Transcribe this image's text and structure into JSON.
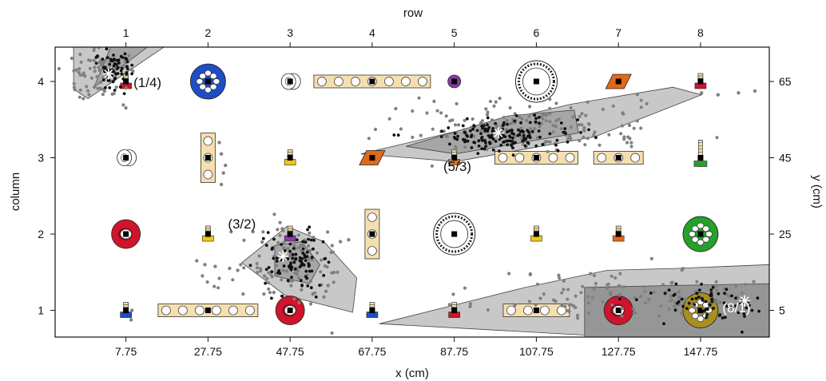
{
  "chart_data": {
    "type": "scatter",
    "title": "",
    "top_axis": {
      "label": "row",
      "ticks": [
        "1",
        "2",
        "3",
        "4",
        "5",
        "6",
        "7",
        "8"
      ]
    },
    "left_axis": {
      "label": "column",
      "ticks": [
        "1",
        "2",
        "3",
        "4"
      ]
    },
    "bottom_axis": {
      "label": "x (cm)",
      "ticks": [
        "7.75",
        "27.75",
        "47.75",
        "67.75",
        "87.75",
        "107.75",
        "127.75",
        "147.75"
      ],
      "xlim": [
        -9.5,
        164.5
      ]
    },
    "right_axis": {
      "label": "y (cm)",
      "ticks": [
        "5",
        "25",
        "45",
        "65"
      ],
      "ylim": [
        74,
        -2
      ]
    },
    "grid": false,
    "colors": {
      "hull_outer": "#c8c8c8",
      "hull_inner": "#a6a6a6",
      "hull_dark": "#969696",
      "points_light": "#808080",
      "points_dark": "#111111",
      "centroid": "#ffffff",
      "bead_panel": "#f5dfae",
      "red": "#d0142c",
      "blue": "#1f4ec4",
      "olive": "#a8901c",
      "green": "#26a02a",
      "purple": "#8a3ca8",
      "orange": "#e06a1a",
      "yellow": "#f0c818"
    },
    "objects": [
      {
        "row": 1,
        "column": 1,
        "kind": "peg",
        "color": "blue"
      },
      {
        "row": 2,
        "column": 1,
        "kind": "bead-bar-horizontal",
        "holes": 6
      },
      {
        "row": 3,
        "column": 1,
        "kind": "ring",
        "color": "red"
      },
      {
        "row": 4,
        "column": 1,
        "kind": "peg",
        "color": "blue"
      },
      {
        "row": 5,
        "column": 1,
        "kind": "peg",
        "color": "red"
      },
      {
        "row": 6,
        "column": 1,
        "kind": "bead-bar-horizontal",
        "holes": 4
      },
      {
        "row": 7,
        "column": 1,
        "kind": "ring",
        "color": "red"
      },
      {
        "row": 8,
        "column": 1,
        "kind": "ball",
        "color": "olive"
      },
      {
        "row": 1,
        "column": 2,
        "kind": "ring",
        "color": "red"
      },
      {
        "row": 2,
        "column": 2,
        "kind": "peg",
        "color": "yellow"
      },
      {
        "row": 3,
        "column": 2,
        "kind": "peg",
        "color": "purple"
      },
      {
        "row": 4,
        "column": 2,
        "kind": "bead-bar-vertical",
        "holes": 3
      },
      {
        "row": 5,
        "column": 2,
        "kind": "target",
        "color": "white"
      },
      {
        "row": 6,
        "column": 2,
        "kind": "peg",
        "color": "yellow"
      },
      {
        "row": 7,
        "column": 2,
        "kind": "peg",
        "color": "orange"
      },
      {
        "row": 8,
        "column": 2,
        "kind": "ball",
        "color": "green"
      },
      {
        "row": 1,
        "column": 3,
        "kind": "roll",
        "color": "white"
      },
      {
        "row": 2,
        "column": 3,
        "kind": "bead-bar-vertical",
        "holes": 3
      },
      {
        "row": 3,
        "column": 3,
        "kind": "peg",
        "color": "yellow"
      },
      {
        "row": 4,
        "column": 3,
        "kind": "diamond",
        "color": "orange"
      },
      {
        "row": 5,
        "column": 3,
        "kind": "peg",
        "color": "orange"
      },
      {
        "row": 6,
        "column": 3,
        "kind": "bead-bar-horizontal",
        "holes": 5
      },
      {
        "row": 7,
        "column": 3,
        "kind": "bead-bar-horizontal",
        "holes": 3
      },
      {
        "row": 8,
        "column": 3,
        "kind": "screw-peg",
        "color": "green"
      },
      {
        "row": 1,
        "column": 4,
        "kind": "peg",
        "color": "red"
      },
      {
        "row": 2,
        "column": 4,
        "kind": "ball",
        "color": "blue"
      },
      {
        "row": 3,
        "column": 4,
        "kind": "roll",
        "color": "white"
      },
      {
        "row": 4,
        "column": 4,
        "kind": "bead-bar-horizontal",
        "holes": 7
      },
      {
        "row": 5,
        "column": 4,
        "kind": "disc",
        "color": "purple"
      },
      {
        "row": 6,
        "column": 4,
        "kind": "target",
        "color": "white"
      },
      {
        "row": 7,
        "column": 4,
        "kind": "diamond",
        "color": "orange"
      },
      {
        "row": 8,
        "column": 4,
        "kind": "peg",
        "color": "red"
      }
    ],
    "regions": [
      {
        "label": "(8/1)",
        "label_at": [
          156.5,
          4.5
        ],
        "centroid": [
          158.5,
          7.5
        ],
        "hull_outer": [
          [
            69.5,
            1.5
          ],
          [
            120,
            -1.5
          ],
          [
            164.5,
            -2
          ],
          [
            164.5,
            17
          ],
          [
            142,
            16
          ],
          [
            125,
            15.5
          ],
          [
            105,
            11
          ]
        ],
        "hull_inner": [
          [
            119.5,
            -2
          ],
          [
            164.5,
            -2
          ],
          [
            164.5,
            12
          ],
          [
            140,
            11.5
          ],
          [
            119.5,
            11
          ]
        ],
        "cloud": {
          "cx": 132,
          "cy": 9,
          "sx": 18,
          "sy": 3.5,
          "n": 130,
          "seed": 11
        },
        "dark_cloud": {
          "cx": 152,
          "cy": 7,
          "sx": 9,
          "sy": 2.5,
          "n": 70,
          "seed": 12
        }
      },
      {
        "label": "(3/2)",
        "label_at": [
          36,
          26.5
        ],
        "centroid": [
          46,
          19.2
        ],
        "hull_outer": [
          [
            36,
            17.5
          ],
          [
            46.5,
            9
          ],
          [
            63,
            4.5
          ],
          [
            64,
            13.5
          ],
          [
            56,
            23
          ],
          [
            47,
            27
          ]
        ],
        "hull_inner": [
          [
            44,
            14
          ],
          [
            52.5,
            12
          ],
          [
            55,
            17
          ],
          [
            50.5,
            23
          ],
          [
            44,
            22
          ]
        ],
        "cloud": {
          "cx": 48,
          "cy": 16,
          "sx": 7,
          "sy": 5.5,
          "n": 110,
          "seed": 21
        },
        "dark_cloud": {
          "cx": 48.5,
          "cy": 18,
          "sx": 3.5,
          "sy": 3.5,
          "n": 90,
          "seed": 22
        }
      },
      {
        "label": "(5/3)",
        "label_at": [
          88.5,
          41.5
        ],
        "centroid": [
          98.5,
          51.5
        ],
        "hull_outer": [
          [
            65,
            46
          ],
          [
            88,
            44
          ],
          [
            122,
            50.5
          ],
          [
            148,
            61.5
          ],
          [
            141,
            63.5
          ],
          [
            116,
            59
          ]
        ],
        "hull_inner": [
          [
            76,
            48
          ],
          [
            88,
            46
          ],
          [
            118,
            51.5
          ],
          [
            117,
            57.5
          ],
          [
            101,
            56
          ]
        ],
        "cloud": {
          "cx": 105,
          "cy": 53,
          "sx": 17,
          "sy": 3.5,
          "n": 170,
          "seed": 31
        },
        "dark_cloud": {
          "cx": 98,
          "cy": 51,
          "sx": 9,
          "sy": 2.2,
          "n": 150,
          "seed": 32
        }
      },
      {
        "label": "(1/4)",
        "label_at": [
          13,
          63.5
        ],
        "centroid": [
          3.5,
          67
        ],
        "hull_outer": [
          [
            -5,
            63
          ],
          [
            -1.5,
            60.5
          ],
          [
            17,
            74
          ],
          [
            -5,
            74
          ]
        ],
        "hull_inner": [
          [
            0,
            63.5
          ],
          [
            13,
            74
          ],
          [
            4,
            74
          ]
        ],
        "cloud": {
          "cx": 2,
          "cy": 67,
          "sx": 4.5,
          "sy": 3.5,
          "n": 70,
          "seed": 41
        },
        "dark_cloud": {
          "cx": 4.5,
          "cy": 68.5,
          "sx": 2.5,
          "sy": 2.5,
          "n": 70,
          "seed": 42
        }
      }
    ],
    "stray_points": [
      [
        25,
        18
      ],
      [
        27,
        17
      ],
      [
        29.5,
        16.5
      ],
      [
        33,
        16
      ],
      [
        35,
        15.5
      ],
      [
        58,
        22
      ],
      [
        60,
        23
      ],
      [
        62,
        23.5
      ],
      [
        31,
        38
      ],
      [
        31.5,
        41
      ],
      [
        32,
        43
      ],
      [
        31,
        46
      ],
      [
        30.5,
        49
      ],
      [
        56,
        8.5
      ],
      [
        56.5,
        10
      ],
      [
        57,
        11.5
      ],
      [
        148,
        62
      ],
      [
        152,
        61.5
      ],
      [
        157,
        62
      ],
      [
        161,
        62.5
      ],
      [
        9,
        2.5
      ],
      [
        9.2,
        5
      ]
    ]
  }
}
